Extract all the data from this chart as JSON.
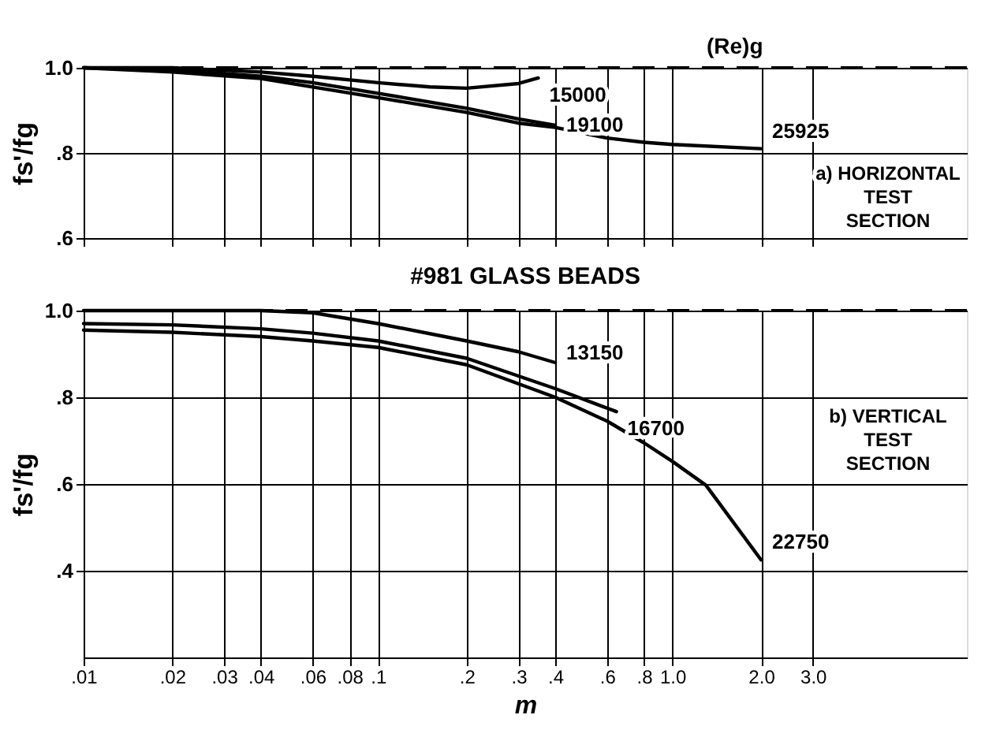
{
  "chart_data": [
    {
      "type": "line",
      "ylabel": "fs'/fg",
      "log": "x",
      "grid": true,
      "tick_labels": "y",
      "xlim": [
        0.01,
        10
      ],
      "xticks": [
        {
          "value": 0.01,
          "label": null
        },
        {
          "value": 0.02,
          "label": null
        },
        {
          "value": 0.03,
          "label": null
        },
        {
          "value": 0.04,
          "label": null
        },
        {
          "value": 0.06,
          "label": null
        },
        {
          "value": 0.08,
          "label": null
        },
        {
          "value": 0.1,
          "label": null
        },
        {
          "value": 0.2,
          "label": null
        },
        {
          "value": 0.3,
          "label": null
        },
        {
          "value": 0.4,
          "label": null
        },
        {
          "value": 0.6,
          "label": null
        },
        {
          "value": 0.8,
          "label": null
        },
        {
          "value": 1.0,
          "label": null
        },
        {
          "value": 2.0,
          "label": null
        },
        {
          "value": 3.0,
          "label": null
        }
      ],
      "ylim": [
        0.6,
        1.0
      ],
      "yticks": [
        {
          "value": 0.6,
          "label": ".6"
        },
        {
          "value": 0.8,
          "label": ".8"
        },
        {
          "value": 1.0,
          "label": "1.0"
        }
      ],
      "ref_lines": [
        {
          "axis": "y",
          "value": 1.0,
          "line_style": "dashed",
          "color": "#000000"
        }
      ],
      "annotations": [
        "(Re)g",
        "a) HORIZONTAL TEST SECTION"
      ],
      "series": [
        {
          "name": "15000",
          "color": "#000000",
          "x": [
            0.01,
            0.02,
            0.04,
            0.06,
            0.1,
            0.15,
            0.2,
            0.3,
            0.35
          ],
          "values": [
            1.0,
            1.0,
            0.99,
            0.98,
            0.965,
            0.955,
            0.952,
            0.963,
            0.976
          ]
        },
        {
          "name": "19100",
          "color": "#000000",
          "x": [
            0.01,
            0.02,
            0.04,
            0.06,
            0.1,
            0.2,
            0.3,
            0.4
          ],
          "values": [
            1.0,
            0.995,
            0.98,
            0.965,
            0.94,
            0.905,
            0.88,
            0.865
          ]
        },
        {
          "name": "25925",
          "color": "#000000",
          "x": [
            0.01,
            0.02,
            0.04,
            0.06,
            0.1,
            0.2,
            0.3,
            0.4,
            0.6,
            0.8,
            1.0,
            2.0
          ],
          "values": [
            1.0,
            0.99,
            0.975,
            0.955,
            0.93,
            0.895,
            0.87,
            0.86,
            0.835,
            0.825,
            0.82,
            0.81
          ]
        }
      ]
    },
    {
      "type": "line",
      "title": "#981 GLASS BEADS",
      "xlabel": "m",
      "ylabel": "fs'/fg",
      "log": "x",
      "grid": true,
      "xlim": [
        0.01,
        10
      ],
      "xticks": [
        {
          "value": 0.01,
          "label": ".01"
        },
        {
          "value": 0.02,
          "label": ".02"
        },
        {
          "value": 0.03,
          "label": ".03"
        },
        {
          "value": 0.04,
          "label": ".04"
        },
        {
          "value": 0.06,
          "label": ".06"
        },
        {
          "value": 0.08,
          "label": ".08"
        },
        {
          "value": 0.1,
          "label": ".1"
        },
        {
          "value": 0.2,
          "label": ".2"
        },
        {
          "value": 0.3,
          "label": ".3"
        },
        {
          "value": 0.4,
          "label": ".4"
        },
        {
          "value": 0.6,
          "label": ".6"
        },
        {
          "value": 0.8,
          "label": ".8"
        },
        {
          "value": 1.0,
          "label": "1.0"
        },
        {
          "value": 2.0,
          "label": "2.0"
        },
        {
          "value": 3.0,
          "label": "3.0"
        }
      ],
      "ylim": [
        0.2,
        1.0
      ],
      "yticks": [
        {
          "value": 0.4,
          "label": ".4"
        },
        {
          "value": 0.6,
          "label": ".6"
        },
        {
          "value": 0.8,
          "label": ".8"
        },
        {
          "value": 1.0,
          "label": "1.0"
        }
      ],
      "ref_lines": [
        {
          "axis": "y",
          "value": 1.0,
          "line_style": "dashed",
          "color": "#000000"
        }
      ],
      "annotations": [
        "b) VERTICAL TEST SECTION"
      ],
      "series": [
        {
          "name": "13150",
          "color": "#000000",
          "x": [
            0.01,
            0.02,
            0.04,
            0.06,
            0.1,
            0.2,
            0.3,
            0.4
          ],
          "values": [
            1.0,
            1.0,
            1.0,
            0.995,
            0.97,
            0.93,
            0.905,
            0.88
          ]
        },
        {
          "name": "16700",
          "color": "#000000",
          "x": [
            0.01,
            0.02,
            0.04,
            0.06,
            0.1,
            0.2,
            0.4,
            0.6,
            0.645
          ],
          "values": [
            0.97,
            0.967,
            0.958,
            0.948,
            0.93,
            0.89,
            0.82,
            0.775,
            0.767
          ]
        },
        {
          "name": "22750",
          "color": "#000000",
          "x": [
            0.01,
            0.02,
            0.04,
            0.06,
            0.1,
            0.2,
            0.4,
            0.6,
            0.8,
            1.0,
            1.3,
            2.0
          ],
          "values": [
            0.955,
            0.95,
            0.94,
            0.93,
            0.915,
            0.875,
            0.8,
            0.745,
            0.695,
            0.652,
            0.597,
            0.425
          ]
        }
      ]
    }
  ]
}
